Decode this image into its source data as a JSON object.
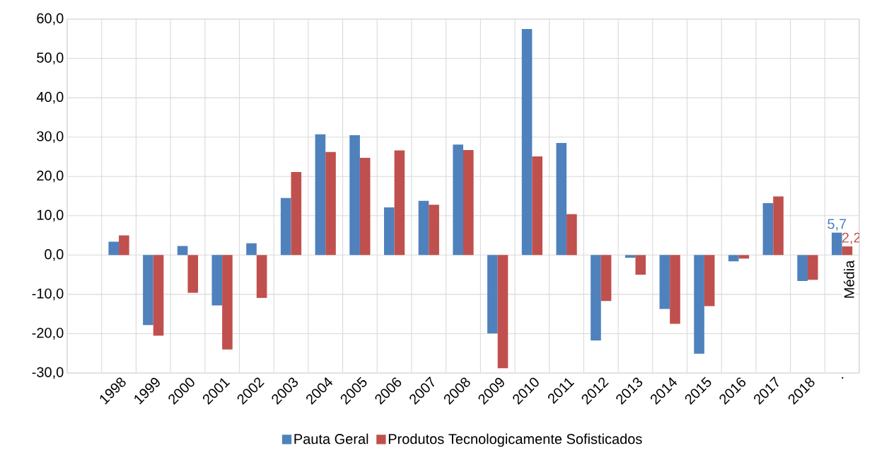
{
  "chart_data": {
    "type": "bar",
    "categories": [
      null,
      "1998",
      "1999",
      "2000",
      "2001",
      "2002",
      "2003",
      "2004",
      "2005",
      "2006",
      "2007",
      "2008",
      "2009",
      "2010",
      "2011",
      "2012",
      "2013",
      "2014",
      "2015",
      "2016",
      "2017",
      "2018",
      "."
    ],
    "series": [
      {
        "name": "Pauta Geral",
        "color": "#4f81bd",
        "values": [
          null,
          3.4,
          -17.8,
          2.3,
          -12.8,
          3.0,
          14.5,
          30.7,
          30.5,
          12.1,
          13.8,
          28.1,
          -19.9,
          57.5,
          28.5,
          -21.7,
          -0.7,
          -13.7,
          -25.1,
          -1.6,
          13.2,
          -6.6,
          5.7
        ],
        "value_labels": [
          null,
          null,
          null,
          null,
          null,
          null,
          null,
          null,
          null,
          null,
          null,
          null,
          null,
          null,
          null,
          null,
          null,
          null,
          null,
          null,
          null,
          null,
          "5,7"
        ]
      },
      {
        "name": "Produtos Tecnologicamente Sofisticados",
        "color": "#c0504d",
        "values": [
          null,
          5.0,
          -20.5,
          -9.6,
          -24.0,
          -10.9,
          21.1,
          26.2,
          24.7,
          26.6,
          12.8,
          26.7,
          -28.8,
          25.1,
          10.4,
          -11.7,
          -5.0,
          -17.5,
          -13.0,
          -0.9,
          14.9,
          -6.3,
          2.2
        ],
        "value_labels": [
          null,
          null,
          null,
          null,
          null,
          null,
          null,
          null,
          null,
          null,
          null,
          null,
          null,
          null,
          null,
          null,
          null,
          null,
          null,
          null,
          null,
          null,
          "2,2"
        ]
      }
    ],
    "ylim": [
      -30,
      60
    ],
    "yticks": [
      {
        "value": -30,
        "label": "-30,0"
      },
      {
        "value": -20,
        "label": "-20,0"
      },
      {
        "value": -10,
        "label": "-10,0"
      },
      {
        "value": 0,
        "label": "0,0"
      },
      {
        "value": 10,
        "label": "10,0"
      },
      {
        "value": 20,
        "label": "20,0"
      },
      {
        "value": 30,
        "label": "30,0"
      },
      {
        "value": 40,
        "label": "40,0"
      },
      {
        "value": 50,
        "label": "50,0"
      },
      {
        "value": 60,
        "label": "60,0"
      }
    ],
    "annotations": [
      "Média"
    ],
    "grid": true,
    "legend": "bottom"
  }
}
